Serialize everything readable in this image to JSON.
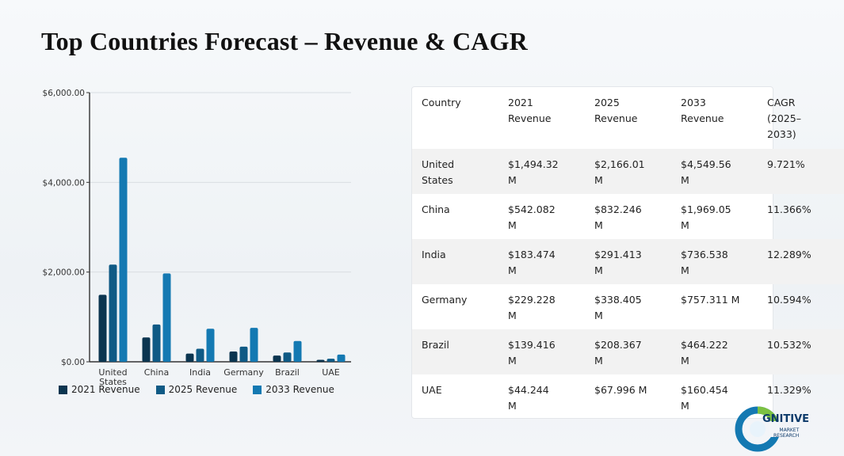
{
  "title": "Top Countries Forecast – Revenue & CAGR",
  "colors": {
    "s2021": "#0b3550",
    "s2025": "#0f5a85",
    "s2033": "#1479b2",
    "grid": "#d9dde2",
    "axis": "#333333"
  },
  "chart_data": {
    "type": "bar",
    "categories": [
      "United States",
      "China",
      "India",
      "Germany",
      "Brazil",
      "UAE"
    ],
    "category_lines": [
      [
        "United",
        "States"
      ],
      [
        "China"
      ],
      [
        "India"
      ],
      [
        "Germany"
      ],
      [
        "Brazil"
      ],
      [
        "UAE"
      ]
    ],
    "series": [
      {
        "name": "2021 Revenue",
        "values": [
          1494.32,
          542.082,
          183.474,
          229.228,
          139.416,
          44.244
        ]
      },
      {
        "name": "2025 Revenue",
        "values": [
          2166.01,
          832.246,
          291.413,
          338.405,
          208.367,
          67.996
        ]
      },
      {
        "name": "2033 Revenue",
        "values": [
          4549.56,
          1969.05,
          736.538,
          757.311,
          464.222,
          160.454
        ]
      }
    ],
    "yticks": [
      "$0.00",
      "$2,000.00",
      "$4,000.00",
      "$6,000.00"
    ],
    "ytick_values": [
      0,
      2000,
      4000,
      6000
    ],
    "ylim": [
      0,
      6000
    ],
    "grid": true,
    "legend": "bottom"
  },
  "table": {
    "headers": [
      [
        "Country"
      ],
      [
        "2021",
        "Revenue"
      ],
      [
        "2025",
        "Revenue"
      ],
      [
        "2033",
        "Revenue"
      ],
      [
        "CAGR",
        "(2025–",
        "2033)"
      ]
    ],
    "rows": [
      [
        [
          "United",
          "States"
        ],
        [
          "$1,494.32",
          "M"
        ],
        [
          "$2,166.01",
          "M"
        ],
        [
          "$4,549.56",
          "M"
        ],
        [
          "9.721%"
        ]
      ],
      [
        [
          "China"
        ],
        [
          "$542.082",
          "M"
        ],
        [
          "$832.246",
          "M"
        ],
        [
          "$1,969.05",
          "M"
        ],
        [
          "11.366%"
        ]
      ],
      [
        [
          "India"
        ],
        [
          "$183.474",
          "M"
        ],
        [
          "$291.413",
          "M"
        ],
        [
          "$736.538",
          "M"
        ],
        [
          "12.289%"
        ]
      ],
      [
        [
          "Germany"
        ],
        [
          "$229.228",
          "M"
        ],
        [
          "$338.405",
          "M"
        ],
        [
          "$757.311 M"
        ],
        [
          "10.594%"
        ]
      ],
      [
        [
          "Brazil"
        ],
        [
          "$139.416",
          "M"
        ],
        [
          "$208.367",
          "M"
        ],
        [
          "$464.222",
          "M"
        ],
        [
          "10.532%"
        ]
      ],
      [
        [
          "UAE"
        ],
        [
          "$44.244",
          "M"
        ],
        [
          "$67.996 M"
        ],
        [
          "$160.454",
          "M"
        ],
        [
          "11.329%"
        ]
      ]
    ]
  },
  "logo": {
    "name": "GNITIVE",
    "sub1": "MARKET",
    "sub2": "RESEARCH"
  }
}
